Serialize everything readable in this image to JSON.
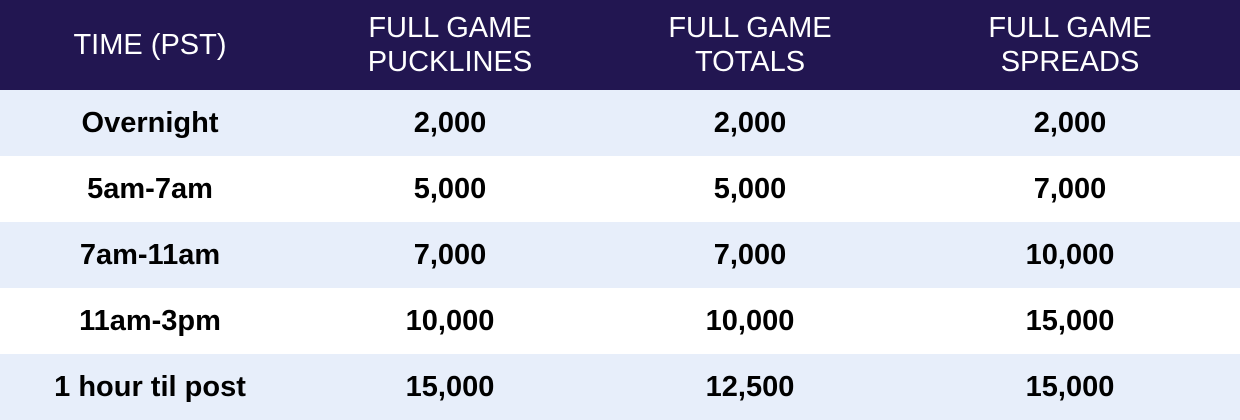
{
  "colors": {
    "header_bg": "#221651",
    "header_text": "#ffffff",
    "row_alt_bg": "#e7eefa",
    "row_bg": "#ffffff"
  },
  "table": {
    "headers": [
      [
        "TIME (PST)"
      ],
      [
        "FULL GAME",
        "PUCKLINES"
      ],
      [
        "FULL GAME",
        "TOTALS"
      ],
      [
        "FULL GAME",
        "SPREADS"
      ]
    ],
    "rows": [
      [
        "Overnight",
        "2,000",
        "2,000",
        "2,000"
      ],
      [
        "5am-7am",
        "5,000",
        "5,000",
        "7,000"
      ],
      [
        "7am-11am",
        "7,000",
        "7,000",
        "10,000"
      ],
      [
        "11am-3pm",
        "10,000",
        "10,000",
        "15,000"
      ],
      [
        "1 hour til post",
        "15,000",
        "12,500",
        "15,000"
      ]
    ]
  }
}
